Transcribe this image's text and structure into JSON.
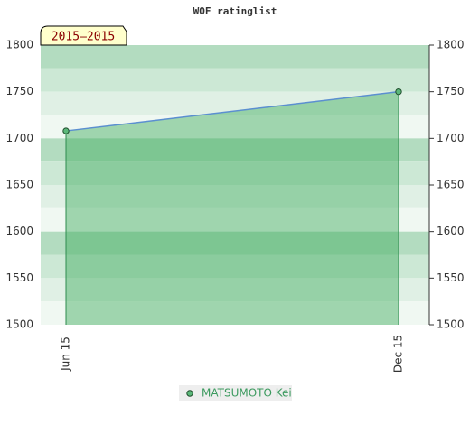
{
  "chart_data": {
    "type": "line",
    "title": "WOF ratinglist",
    "annotation": "2015–2015",
    "categories": [
      "Jun 15",
      "Dec 15"
    ],
    "series": [
      {
        "name": "MATSUMOTO Kei",
        "color": "#3c9a5f",
        "line_color": "#5b8fd0",
        "values": [
          1708,
          1750
        ]
      }
    ],
    "ylim": [
      1500,
      1800
    ],
    "yticks": [
      1500,
      1550,
      1600,
      1650,
      1700,
      1750,
      1800
    ],
    "y2lim": [
      1500,
      1800
    ],
    "y2ticks": [
      1500,
      1550,
      1600,
      1650,
      1700,
      1750,
      1800
    ],
    "legend": "bottom"
  }
}
